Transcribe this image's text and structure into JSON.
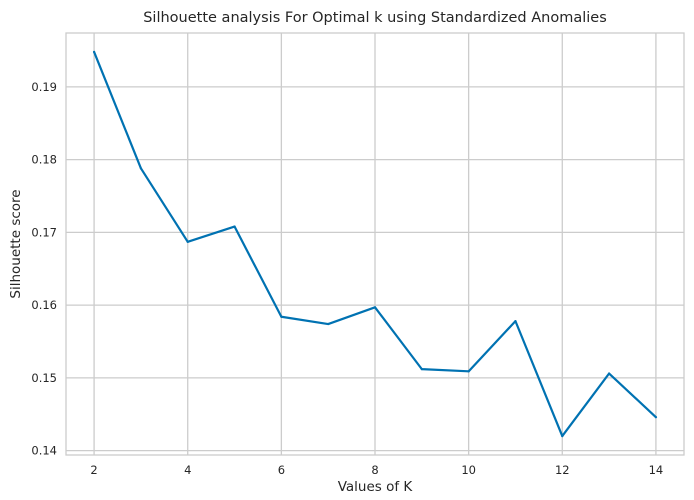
{
  "chart_data": {
    "type": "line",
    "title": "Silhouette analysis For Optimal k using Standardized Anomalies",
    "xlabel": "Values of K",
    "ylabel": "Silhouette score",
    "x": [
      2,
      3,
      4,
      5,
      6,
      7,
      8,
      9,
      10,
      11,
      12,
      13,
      14
    ],
    "series": [
      {
        "values": [
          0.1948,
          0.1788,
          0.1687,
          0.1708,
          0.1584,
          0.1574,
          0.1597,
          0.1512,
          0.1509,
          0.1578,
          0.142,
          0.1506,
          0.1446
        ],
        "color": "#0072b2"
      }
    ],
    "xlim": [
      1.4,
      14.6
    ],
    "ylim": [
      0.1394,
      0.1974
    ],
    "xticks": [
      2,
      4,
      6,
      8,
      10,
      12,
      14
    ],
    "yticks": [
      0.14,
      0.15,
      0.16,
      0.17,
      0.18,
      0.19
    ],
    "xtick_labels": [
      "2",
      "4",
      "6",
      "8",
      "10",
      "12",
      "14"
    ],
    "ytick_labels": [
      "0.14",
      "0.15",
      "0.16",
      "0.17",
      "0.18",
      "0.19"
    ],
    "grid": true,
    "legend": "none"
  }
}
